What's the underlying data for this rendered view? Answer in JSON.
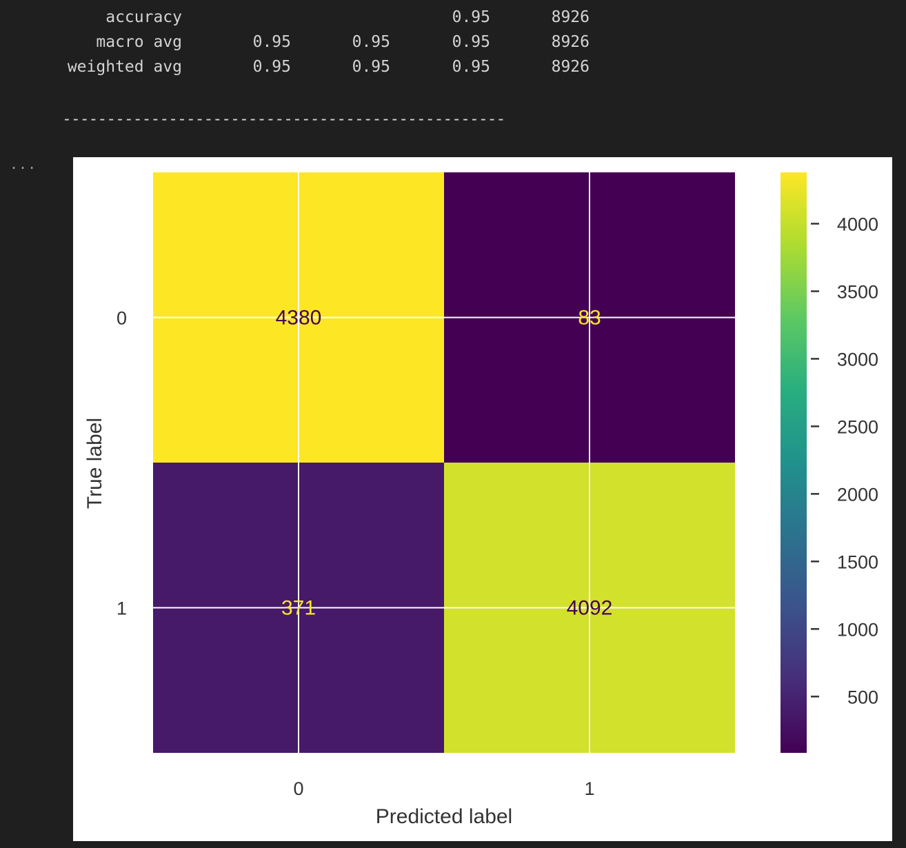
{
  "report": {
    "rows": [
      {
        "label": "accuracy",
        "precision": "",
        "recall": "",
        "f1": "0.95",
        "support": "8926"
      },
      {
        "label": "macro avg",
        "precision": "0.95",
        "recall": "0.95",
        "f1": "0.95",
        "support": "8926"
      },
      {
        "label": "weighted avg",
        "precision": "0.95",
        "recall": "0.95",
        "f1": "0.95",
        "support": "8926"
      }
    ],
    "separator": "--------------------------------------------------",
    "output_marker": "..."
  },
  "chart_data": {
    "type": "heatmap",
    "subtype": "confusion-matrix",
    "title": "",
    "xlabel": "Predicted label",
    "ylabel": "True label",
    "x_ticks": [
      "0",
      "1"
    ],
    "y_ticks": [
      "0",
      "1"
    ],
    "matrix": [
      [
        4380,
        83
      ],
      [
        371,
        4092
      ]
    ],
    "cell_labels": [
      [
        "4380",
        "83"
      ],
      [
        "371",
        "4092"
      ]
    ],
    "colormap": "viridis",
    "grid": true,
    "colorbar": {
      "range": [
        83,
        4380
      ],
      "ticks": [
        500,
        1000,
        1500,
        2000,
        2500,
        3000,
        3500,
        4000
      ],
      "tick_labels": [
        "500",
        "1000",
        "1500",
        "2000",
        "2500",
        "3000",
        "3500",
        "4000"
      ]
    },
    "colors": {
      "high_text": "#440154",
      "low_text": "#fde725"
    }
  }
}
